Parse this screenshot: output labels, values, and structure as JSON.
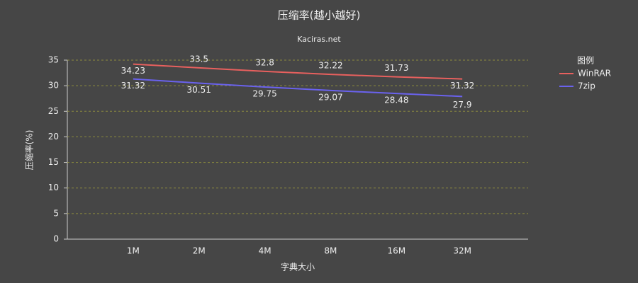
{
  "chart_data": {
    "type": "line",
    "title": "压缩率(越小越好)",
    "subtitle": "Kaciras.net",
    "x_label": "字典大小",
    "y_label": "压缩率(%)",
    "legend_title": "图例",
    "legend": "right",
    "categories": [
      "1M",
      "2M",
      "4M",
      "8M",
      "16M",
      "32M"
    ],
    "series": [
      {
        "name": "WinRAR",
        "color": "#e8605e",
        "values": [
          34.23,
          33.5,
          32.8,
          32.22,
          31.73,
          31.32
        ]
      },
      {
        "name": "7zip",
        "color": "#6a62ee",
        "values": [
          31.32,
          30.51,
          29.75,
          29.07,
          28.48,
          27.9
        ]
      }
    ],
    "ylim": [
      0,
      35
    ],
    "yticks": [
      0,
      5,
      10,
      15,
      20,
      25,
      30,
      35
    ],
    "grid": true
  }
}
